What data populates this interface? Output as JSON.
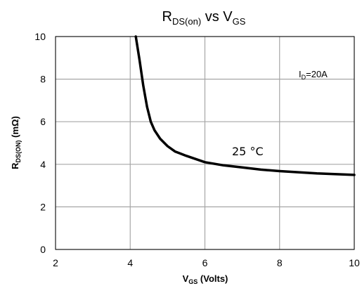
{
  "chart_data": {
    "type": "line",
    "title": {
      "main": "R",
      "sub": "DS(on)",
      "mid": " vs V",
      "sub2": "GS"
    },
    "xlabel": {
      "main": "V",
      "sub": "GS",
      "rest": " (Volts)"
    },
    "ylabel": {
      "main": "R",
      "sub": "DS(ON)",
      "rest": " (mΩ)"
    },
    "xlim": [
      2,
      10
    ],
    "ylim": [
      0,
      10
    ],
    "xticks": [
      2,
      4,
      6,
      8,
      10
    ],
    "yticks": [
      0,
      2,
      4,
      6,
      8,
      10
    ],
    "grid": true,
    "annotation": {
      "main": "I",
      "sub": "D",
      "rest": "=20A"
    },
    "series": [
      {
        "name": "25 °C",
        "color": "#000000",
        "x": [
          4.15,
          4.25,
          4.35,
          4.45,
          4.55,
          4.65,
          4.8,
          5.0,
          5.2,
          5.5,
          6.0,
          6.5,
          7.0,
          7.5,
          8.0,
          9.0,
          10.0
        ],
        "y": [
          10.0,
          8.9,
          7.7,
          6.7,
          6.0,
          5.6,
          5.2,
          4.85,
          4.6,
          4.4,
          4.1,
          3.95,
          3.85,
          3.75,
          3.68,
          3.57,
          3.5
        ]
      }
    ]
  }
}
